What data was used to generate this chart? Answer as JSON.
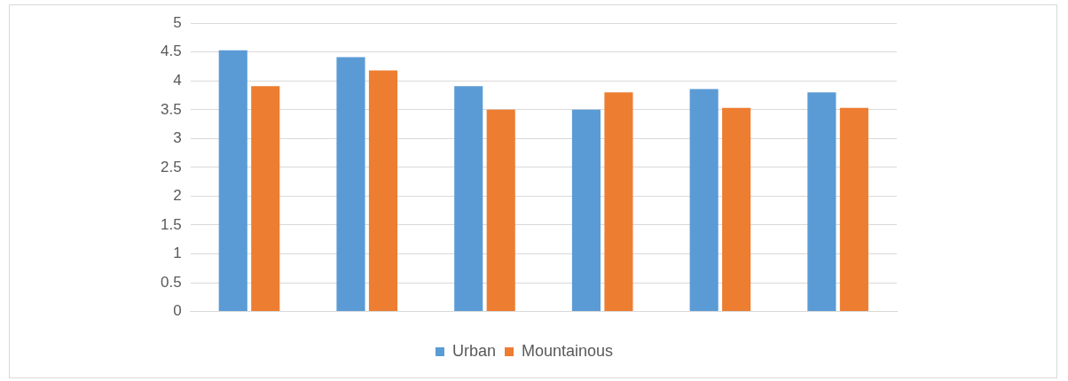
{
  "chart_data": {
    "type": "bar",
    "categories": [
      null,
      null,
      null,
      null,
      null,
      null
    ],
    "series": [
      {
        "name": "Urban",
        "color": "#5b9bd5",
        "values": [
          4.53,
          4.41,
          3.91,
          3.5,
          3.86,
          3.8
        ]
      },
      {
        "name": "Mountainous",
        "color": "#ed7d31",
        "values": [
          3.91,
          4.18,
          3.5,
          3.8,
          3.53,
          3.53
        ]
      }
    ],
    "ylim": [
      0,
      5
    ],
    "yticks": [
      0,
      0.5,
      1,
      1.5,
      2,
      2.5,
      3,
      3.5,
      4,
      4.5,
      5
    ],
    "grid": "y",
    "legend": "bottom"
  }
}
